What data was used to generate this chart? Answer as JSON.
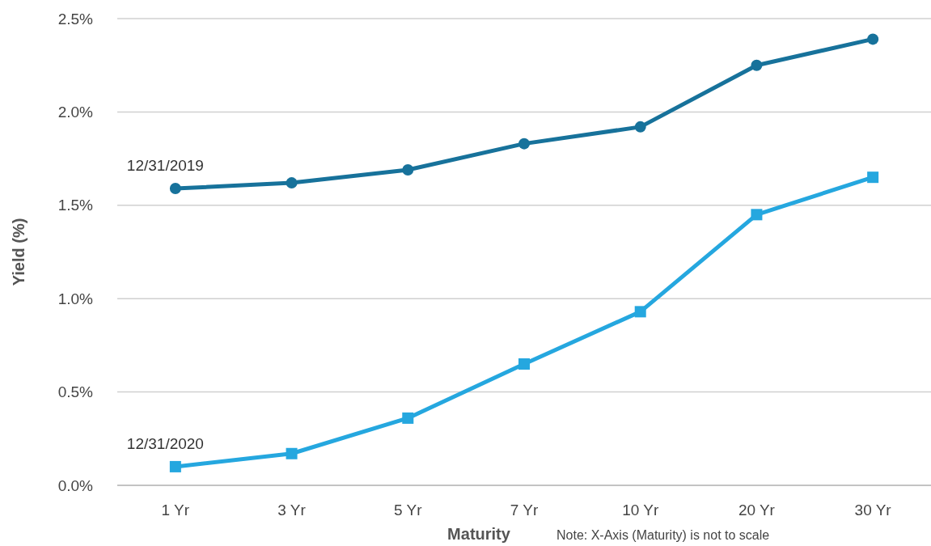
{
  "chart_data": {
    "type": "line",
    "xlabel": "Maturity",
    "ylabel": "Yield (%)",
    "categories": [
      "1 Yr",
      "3 Yr",
      "5 Yr",
      "7 Yr",
      "10 Yr",
      "20 Yr",
      "30 Yr"
    ],
    "series": [
      {
        "name": "12/31/2019",
        "color": "#17729b",
        "marker": "circle",
        "values": [
          1.59,
          1.62,
          1.69,
          1.83,
          1.92,
          2.25,
          2.39
        ]
      },
      {
        "name": "12/31/2020",
        "color": "#25a7df",
        "marker": "square",
        "values": [
          0.1,
          0.17,
          0.36,
          0.65,
          0.93,
          1.45,
          1.65
        ]
      }
    ],
    "ylim": [
      0,
      2.5
    ],
    "yticks": [
      {
        "value": 0,
        "label": "0.0%"
      },
      {
        "value": 0.5,
        "label": "0.5%"
      },
      {
        "value": 1,
        "label": "1.0%"
      },
      {
        "value": 1.5,
        "label": "1.5%"
      },
      {
        "value": 2,
        "label": "2.0%"
      },
      {
        "value": 2.5,
        "label": "2.5%"
      }
    ],
    "grid": "y",
    "line_style": "solid",
    "annotations": [
      "Note: X-Axis (Maturity) is not to scale"
    ]
  }
}
